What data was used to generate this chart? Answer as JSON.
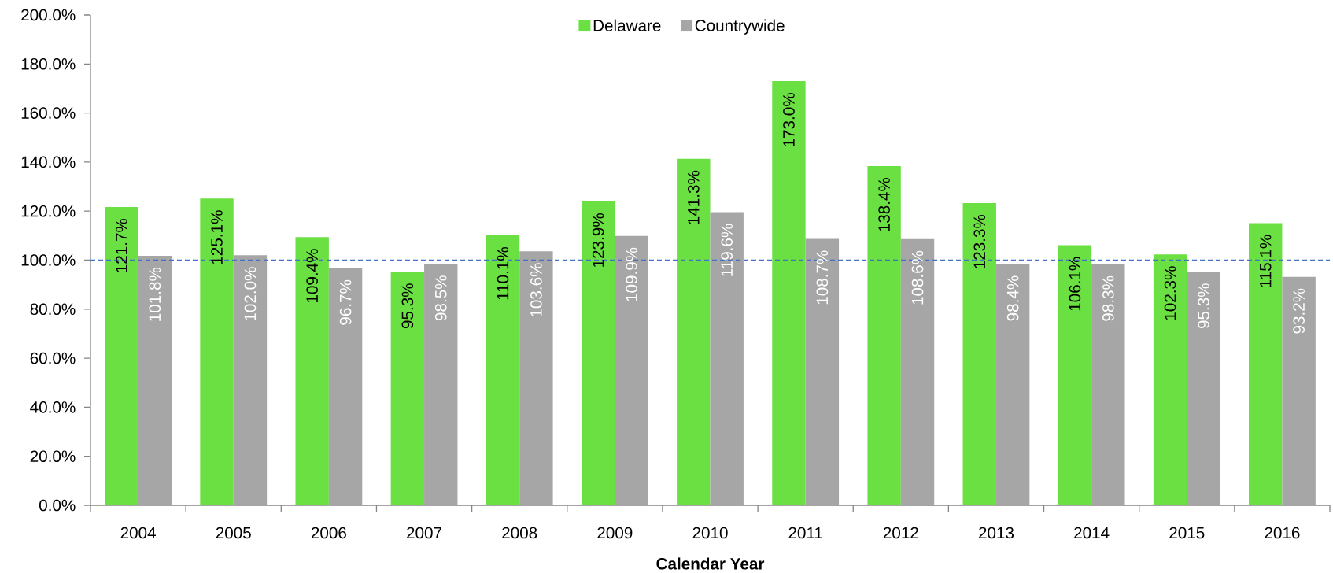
{
  "chart_data": {
    "type": "bar",
    "xlabel": "Calendar Year",
    "categories": [
      "2004",
      "2005",
      "2006",
      "2007",
      "2008",
      "2009",
      "2010",
      "2011",
      "2012",
      "2013",
      "2014",
      "2015",
      "2016"
    ],
    "series": [
      {
        "name": "Delaware",
        "color": "#6be042",
        "values": [
          121.7,
          125.1,
          109.4,
          95.3,
          110.1,
          123.9,
          141.3,
          173.0,
          138.4,
          123.3,
          106.1,
          102.3,
          115.1
        ],
        "value_labels": [
          "121.7%",
          "125.1%",
          "109.4%",
          "95.3%",
          "110.1%",
          "123.9%",
          "141.3%",
          "173.0%",
          "138.4%",
          "123.3%",
          "106.1%",
          "102.3%",
          "115.1%"
        ]
      },
      {
        "name": "Countrywide",
        "color": "#a6a6a6",
        "values": [
          101.8,
          102.0,
          96.7,
          98.5,
          103.6,
          109.9,
          119.6,
          108.7,
          108.6,
          98.4,
          98.3,
          95.3,
          93.2
        ],
        "value_labels": [
          "101.8%",
          "102.0%",
          "96.7%",
          "98.5%",
          "103.6%",
          "109.9%",
          "119.6%",
          "108.7%",
          "108.6%",
          "98.4%",
          "98.3%",
          "95.3%",
          "93.2%"
        ]
      }
    ],
    "ylim": [
      0,
      200
    ],
    "yticks": [
      {
        "value": 0,
        "label": "0.0%"
      },
      {
        "value": 20,
        "label": "20.0%"
      },
      {
        "value": 40,
        "label": "40.0%"
      },
      {
        "value": 60,
        "label": "60.0%"
      },
      {
        "value": 80,
        "label": "80.0%"
      },
      {
        "value": 100,
        "label": "100.0%"
      },
      {
        "value": 120,
        "label": "120.0%"
      },
      {
        "value": 140,
        "label": "140.0%"
      },
      {
        "value": 160,
        "label": "160.0%"
      },
      {
        "value": 180,
        "label": "180.0%"
      },
      {
        "value": 200,
        "label": "200.0%"
      }
    ],
    "ref_lines": [
      {
        "axis": "y",
        "value": 100,
        "color": "#4472c4",
        "line_style": "dashed"
      }
    ],
    "legend": "top"
  }
}
